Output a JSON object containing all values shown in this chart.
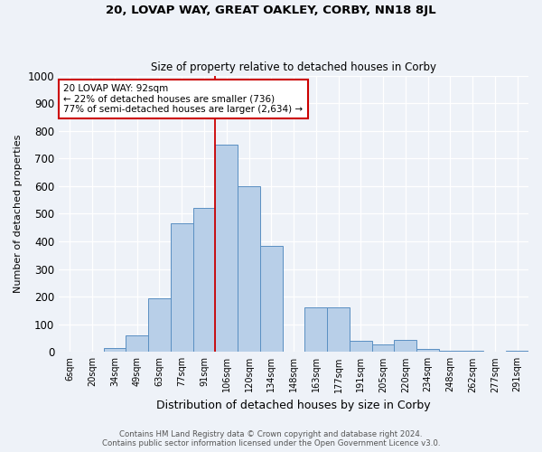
{
  "title": "20, LOVAP WAY, GREAT OAKLEY, CORBY, NN18 8JL",
  "subtitle": "Size of property relative to detached houses in Corby",
  "xlabel": "Distribution of detached houses by size in Corby",
  "ylabel": "Number of detached properties",
  "footer_line1": "Contains HM Land Registry data © Crown copyright and database right 2024.",
  "footer_line2": "Contains public sector information licensed under the Open Government Licence v3.0.",
  "annotation_line1": "20 LOVAP WAY: 92sqm",
  "annotation_line2": "← 22% of detached houses are smaller (736)",
  "annotation_line3": "77% of semi-detached houses are larger (2,634) →",
  "categories": [
    "6sqm",
    "20sqm",
    "34sqm",
    "49sqm",
    "63sqm",
    "77sqm",
    "91sqm",
    "106sqm",
    "120sqm",
    "134sqm",
    "148sqm",
    "163sqm",
    "177sqm",
    "191sqm",
    "205sqm",
    "220sqm",
    "234sqm",
    "248sqm",
    "262sqm",
    "277sqm",
    "291sqm"
  ],
  "values": [
    0,
    0,
    13,
    60,
    195,
    465,
    520,
    750,
    600,
    385,
    0,
    160,
    160,
    40,
    27,
    45,
    10,
    5,
    3,
    2,
    5
  ],
  "bar_color": "#b8cfe8",
  "bar_edge_color": "#5a8fc2",
  "vline_color": "#cc0000",
  "background_color": "#eef2f8",
  "ylim": [
    0,
    1000
  ],
  "yticks": [
    0,
    100,
    200,
    300,
    400,
    500,
    600,
    700,
    800,
    900,
    1000
  ],
  "vline_idx": 6.5
}
